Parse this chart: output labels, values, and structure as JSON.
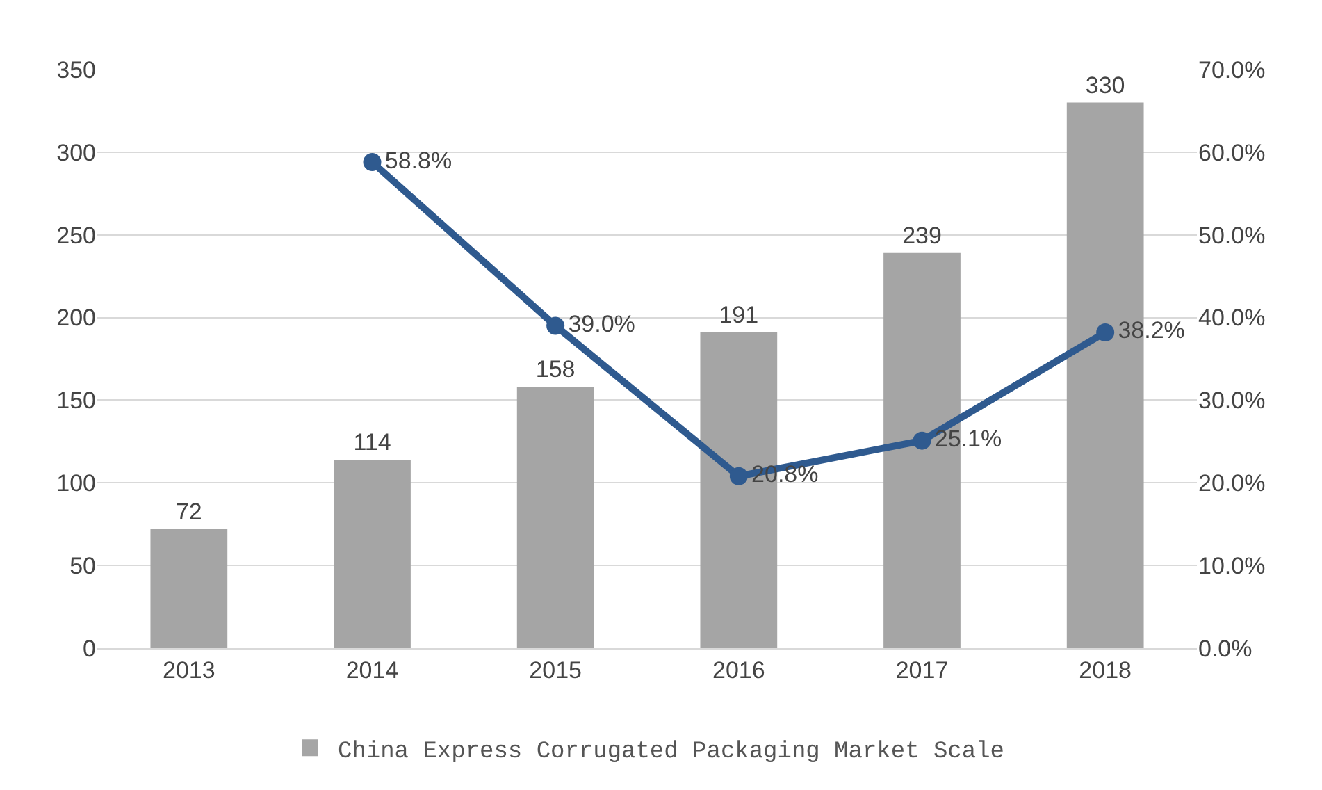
{
  "chart_data": {
    "type": "bar",
    "categories": [
      "2013",
      "2014",
      "2015",
      "2016",
      "2017",
      "2018"
    ],
    "series": [
      {
        "name": "China Express Corrugated Packaging Market Scale",
        "color": "#a5a5a5",
        "values": [
          72,
          114,
          158,
          191,
          239,
          330
        ],
        "value_labels": [
          "72",
          "114",
          "158",
          "191",
          "239",
          "330"
        ]
      },
      {
        "type": "line",
        "axis": "y2",
        "color": "#2f5a8f",
        "marker": "circle",
        "values": [
          null,
          58.8,
          39.0,
          20.8,
          25.1,
          38.2
        ],
        "value_labels": [
          null,
          "58.8%",
          "39.0%",
          "20.8%",
          "25.1%",
          "38.2%"
        ]
      }
    ],
    "ylim": [
      0,
      350
    ],
    "yticks": [
      0,
      50,
      100,
      150,
      200,
      250,
      300,
      350
    ],
    "y2lim": [
      0,
      70
    ],
    "y2ticks": [
      {
        "value": 0,
        "label": "0.0%"
      },
      {
        "value": 10,
        "label": "10.0%"
      },
      {
        "value": 20,
        "label": "20.0%"
      },
      {
        "value": 30,
        "label": "30.0%"
      },
      {
        "value": 40,
        "label": "40.0%"
      },
      {
        "value": 50,
        "label": "50.0%"
      },
      {
        "value": 60,
        "label": "60.0%"
      },
      {
        "value": 70,
        "label": "70.0%"
      }
    ],
    "grid": "y",
    "legend": "bottom"
  }
}
